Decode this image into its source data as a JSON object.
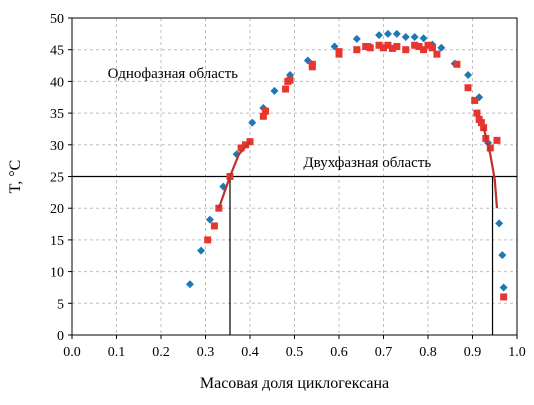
{
  "chart_data": {
    "type": "scatter",
    "xlabel": "Масовая доля циклогексана",
    "ylabel": "T, °C",
    "xlim": [
      0,
      1
    ],
    "ylim": [
      0,
      50
    ],
    "x_ticks": [
      "0.0",
      "0.1",
      "0.2",
      "0.3",
      "0.4",
      "0.5",
      "0.6",
      "0.7",
      "0.8",
      "0.9",
      "1.0"
    ],
    "y_ticks": [
      "0",
      "5",
      "10",
      "15",
      "20",
      "25",
      "30",
      "35",
      "40",
      "45",
      "50"
    ],
    "grid": true,
    "annotations": [
      {
        "text": "Однофазная область",
        "x": 0.08,
        "y": 40.5
      },
      {
        "text": "Двухфазная область",
        "x": 0.52,
        "y": 26.5
      }
    ],
    "reference_lines": [
      {
        "kind": "horizontal",
        "y": 25
      },
      {
        "kind": "vertical",
        "x": 0.355,
        "y_to": 25
      },
      {
        "kind": "vertical",
        "x": 0.945,
        "y_to": 25
      }
    ],
    "series": [
      {
        "marker": "diamond",
        "color": "#1f77b4",
        "points": [
          [
            0.265,
            8.0
          ],
          [
            0.29,
            13.3
          ],
          [
            0.31,
            18.2
          ],
          [
            0.34,
            23.4
          ],
          [
            0.37,
            28.5
          ],
          [
            0.405,
            33.5
          ],
          [
            0.43,
            35.8
          ],
          [
            0.455,
            38.5
          ],
          [
            0.49,
            41.0
          ],
          [
            0.53,
            43.3
          ],
          [
            0.59,
            45.5
          ],
          [
            0.64,
            46.7
          ],
          [
            0.67,
            45.5
          ],
          [
            0.69,
            47.3
          ],
          [
            0.71,
            47.5
          ],
          [
            0.73,
            47.5
          ],
          [
            0.75,
            47.0
          ],
          [
            0.77,
            47.0
          ],
          [
            0.79,
            46.8
          ],
          [
            0.81,
            45.8
          ],
          [
            0.83,
            45.3
          ],
          [
            0.86,
            42.8
          ],
          [
            0.89,
            41.0
          ],
          [
            0.915,
            37.5
          ],
          [
            0.935,
            30.3
          ],
          [
            0.96,
            17.6
          ],
          [
            0.967,
            12.6
          ],
          [
            0.97,
            7.5
          ]
        ]
      },
      {
        "marker": "square",
        "color": "#e8352e",
        "points": [
          [
            0.305,
            15.0
          ],
          [
            0.32,
            17.2
          ],
          [
            0.33,
            20.0
          ],
          [
            0.355,
            25.0
          ],
          [
            0.38,
            29.5
          ],
          [
            0.39,
            30.0
          ],
          [
            0.4,
            30.5
          ],
          [
            0.43,
            34.5
          ],
          [
            0.435,
            35.3
          ],
          [
            0.48,
            38.8
          ],
          [
            0.485,
            40.0
          ],
          [
            0.49,
            40.2
          ],
          [
            0.54,
            42.3
          ],
          [
            0.54,
            42.7
          ],
          [
            0.6,
            44.3
          ],
          [
            0.6,
            44.7
          ],
          [
            0.64,
            45.0
          ],
          [
            0.66,
            45.5
          ],
          [
            0.67,
            45.3
          ],
          [
            0.69,
            45.7
          ],
          [
            0.7,
            45.3
          ],
          [
            0.71,
            45.7
          ],
          [
            0.72,
            45.2
          ],
          [
            0.73,
            45.5
          ],
          [
            0.75,
            45.0
          ],
          [
            0.77,
            45.7
          ],
          [
            0.78,
            45.5
          ],
          [
            0.79,
            45.0
          ],
          [
            0.8,
            45.7
          ],
          [
            0.81,
            45.3
          ],
          [
            0.82,
            44.3
          ],
          [
            0.865,
            42.7
          ],
          [
            0.89,
            39.0
          ],
          [
            0.905,
            37.0
          ],
          [
            0.91,
            35.0
          ],
          [
            0.915,
            34.0
          ],
          [
            0.92,
            33.5
          ],
          [
            0.925,
            32.7
          ],
          [
            0.93,
            31.0
          ],
          [
            0.94,
            29.5
          ],
          [
            0.955,
            30.7
          ],
          [
            0.97,
            6.0
          ]
        ]
      }
    ],
    "fit_curves": [
      {
        "color": "#c0302a",
        "points": [
          [
            0.33,
            20.0
          ],
          [
            0.355,
            25.0
          ],
          [
            0.375,
            28.5
          ],
          [
            0.4,
            30.5
          ]
        ]
      },
      {
        "color": "#c0302a",
        "points": [
          [
            0.925,
            32.7
          ],
          [
            0.94,
            28.5
          ],
          [
            0.95,
            24.5
          ],
          [
            0.955,
            20.0
          ]
        ]
      }
    ]
  }
}
